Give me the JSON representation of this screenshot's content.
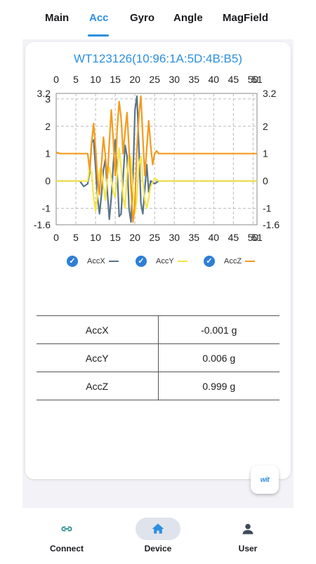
{
  "tabs": [
    {
      "label": "Main",
      "active": false
    },
    {
      "label": "Acc",
      "active": true
    },
    {
      "label": "Gyro",
      "active": false
    },
    {
      "label": "Angle",
      "active": false
    },
    {
      "label": "MagField",
      "active": false
    }
  ],
  "device_title": "WT123126(10:96:1A:5D:4B:B5)",
  "chart_data": {
    "type": "line",
    "x_ticks": [
      "0",
      "5",
      "10",
      "15",
      "20",
      "25",
      "30",
      "35",
      "40",
      "45",
      "50",
      "51"
    ],
    "y_ticks_left": [
      "3.2",
      "3",
      "2",
      "1",
      "0",
      "-1",
      "-1.6"
    ],
    "y_ticks_right": [
      "3.2",
      "2",
      "1",
      "0",
      "-1",
      "-1.6"
    ],
    "xlim": [
      0,
      51
    ],
    "ylim": [
      -1.6,
      3.2
    ],
    "grid": true,
    "legend_position": "bottom",
    "series": [
      {
        "name": "AccX",
        "color": "#5a7489",
        "x": [
          0,
          5,
          6,
          7,
          8,
          8.5,
          9,
          9.5,
          10,
          10.5,
          11,
          11.5,
          12,
          12.5,
          13,
          13.5,
          14,
          14.5,
          15,
          15.5,
          16,
          16.5,
          17,
          17.5,
          18,
          18.5,
          19,
          19.5,
          20,
          20.5,
          21,
          21.5,
          22,
          22.5,
          23,
          23.5,
          24,
          25,
          26,
          30,
          40,
          51
        ],
        "y": [
          0,
          0,
          0,
          -0.2,
          -0.1,
          0.3,
          1.4,
          1.5,
          0.5,
          -0.6,
          -1.2,
          -0.5,
          0.4,
          0.8,
          -0.4,
          -1.4,
          -0.6,
          0.6,
          1.5,
          0.3,
          -1.3,
          -1.2,
          0.1,
          1.3,
          0.9,
          -1.0,
          -1.5,
          0.2,
          2.6,
          3.1,
          1.2,
          -0.8,
          -1.2,
          -0.3,
          0.6,
          -0.4,
          0,
          -0.1,
          0,
          0,
          0,
          0
        ]
      },
      {
        "name": "AccY",
        "color": "#f7e549",
        "x": [
          0,
          5,
          7,
          8,
          8.5,
          9,
          9.5,
          10,
          10.5,
          11,
          11.5,
          12,
          12.5,
          13,
          13.5,
          14,
          14.5,
          15,
          15.5,
          16,
          16.5,
          17,
          17.5,
          18,
          18.5,
          19,
          19.5,
          20,
          20.5,
          21,
          21.5,
          22,
          22.5,
          23,
          24,
          25,
          26,
          30,
          40,
          51
        ],
        "y": [
          0,
          0,
          0,
          0,
          0.5,
          0.3,
          -0.6,
          -1.1,
          -0.5,
          0.4,
          0.5,
          -0.2,
          -0.7,
          0.2,
          0.5,
          0.1,
          -0.4,
          -0.6,
          0.3,
          1.2,
          0.5,
          -0.6,
          -1.0,
          0.2,
          1.0,
          0.8,
          -0.4,
          -1.2,
          -0.6,
          0.6,
          0.9,
          0,
          -0.7,
          -1.0,
          -0.2,
          0.1,
          0,
          0,
          0,
          0
        ]
      },
      {
        "name": "AccZ",
        "color": "#f59b1b",
        "x": [
          0,
          1,
          5,
          7,
          8,
          8.5,
          9,
          9.5,
          10,
          10.5,
          11,
          11.5,
          12,
          12.5,
          13,
          13.5,
          14,
          14.5,
          15,
          15.5,
          16,
          16.5,
          17,
          17.5,
          18,
          18.5,
          19,
          19.5,
          20,
          20.5,
          21,
          21.5,
          22,
          22.5,
          23,
          23.5,
          24,
          24.5,
          25,
          25.5,
          26,
          30,
          40,
          51
        ],
        "y": [
          1.05,
          1,
          1,
          1,
          1,
          0.4,
          1.4,
          2.1,
          1.2,
          0.1,
          -0.5,
          0.6,
          1.6,
          0.9,
          0.1,
          1.4,
          2.6,
          1.5,
          0.2,
          1.9,
          2.9,
          2.3,
          1.0,
          1.8,
          2.5,
          1.2,
          -0.2,
          -1.5,
          -0.8,
          1.2,
          2.4,
          3.1,
          1.6,
          0.2,
          1.2,
          2.2,
          1.3,
          0.6,
          1.0,
          1.1,
          1,
          1,
          1,
          1
        ]
      }
    ]
  },
  "legend": [
    {
      "label": "AccX",
      "color": "#5a7489"
    },
    {
      "label": "AccY",
      "color": "#f7e549"
    },
    {
      "label": "AccZ",
      "color": "#f59b1b"
    }
  ],
  "readings": [
    {
      "name": "AccX",
      "value": "-0.001 g"
    },
    {
      "name": "AccY",
      "value": "0.006 g"
    },
    {
      "name": "AccZ",
      "value": "0.999 g"
    }
  ],
  "fab": {
    "logo_text": "wit",
    "icon": "wit-logo-icon"
  },
  "bottom_nav": [
    {
      "label": "Connect",
      "icon": "link-icon",
      "active": false
    },
    {
      "label": "Device",
      "icon": "home-icon",
      "active": true
    },
    {
      "label": "User",
      "icon": "user-icon",
      "active": false
    }
  ],
  "colors": {
    "accent": "#2d8fe0",
    "check": "#2d7fd6",
    "nav_pill": "#dfe3ec"
  }
}
